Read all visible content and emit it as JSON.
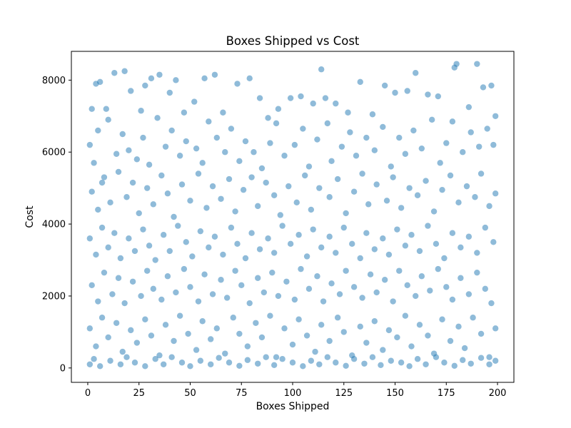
{
  "chart_data": {
    "type": "scatter",
    "title": "Boxes Shipped vs Cost",
    "xlabel": "Boxes Shipped",
    "ylabel": "Cost",
    "xlim": [
      -8,
      208
    ],
    "ylim": [
      -400,
      8800
    ],
    "xticks": [
      0,
      25,
      50,
      75,
      100,
      125,
      150,
      175,
      200
    ],
    "yticks": [
      0,
      2000,
      4000,
      6000,
      8000
    ],
    "point_color": "#1f77b4",
    "point_alpha": 0.5,
    "grid": false,
    "legend": "none",
    "points": [
      [
        2,
        7200
      ],
      [
        4,
        7900
      ],
      [
        6,
        7950
      ],
      [
        9,
        7200
      ],
      [
        13,
        8200
      ],
      [
        18,
        8250
      ],
      [
        21,
        7700
      ],
      [
        26,
        7150
      ],
      [
        28,
        7850
      ],
      [
        31,
        8050
      ],
      [
        35,
        8150
      ],
      [
        40,
        7650
      ],
      [
        43,
        8000
      ],
      [
        47,
        7100
      ],
      [
        52,
        7400
      ],
      [
        57,
        8050
      ],
      [
        62,
        8150
      ],
      [
        66,
        7100
      ],
      [
        73,
        7900
      ],
      [
        79,
        8050
      ],
      [
        84,
        7500
      ],
      [
        88,
        6950
      ],
      [
        93,
        7200
      ],
      [
        99,
        7500
      ],
      [
        104,
        7550
      ],
      [
        110,
        7350
      ],
      [
        114,
        8300
      ],
      [
        116,
        7500
      ],
      [
        121,
        7350
      ],
      [
        127,
        7100
      ],
      [
        133,
        7950
      ],
      [
        139,
        7050
      ],
      [
        145,
        7850
      ],
      [
        150,
        7650
      ],
      [
        156,
        7700
      ],
      [
        160,
        8200
      ],
      [
        166,
        7600
      ],
      [
        171,
        7550
      ],
      [
        179,
        8350
      ],
      [
        180,
        8450
      ],
      [
        186,
        7250
      ],
      [
        190,
        8450
      ],
      [
        193,
        7800
      ],
      [
        197,
        7850
      ],
      [
        199,
        7000
      ],
      [
        1,
        6200
      ],
      [
        3,
        5700
      ],
      [
        5,
        6600
      ],
      [
        7,
        5150
      ],
      [
        10,
        6900
      ],
      [
        14,
        5950
      ],
      [
        17,
        6500
      ],
      [
        20,
        6050
      ],
      [
        24,
        5800
      ],
      [
        27,
        6400
      ],
      [
        30,
        5650
      ],
      [
        34,
        6950
      ],
      [
        38,
        6150
      ],
      [
        41,
        6600
      ],
      [
        45,
        5900
      ],
      [
        48,
        6300
      ],
      [
        53,
        6100
      ],
      [
        56,
        5700
      ],
      [
        59,
        6850
      ],
      [
        63,
        6400
      ],
      [
        67,
        6000
      ],
      [
        70,
        6650
      ],
      [
        74,
        5750
      ],
      [
        77,
        6300
      ],
      [
        81,
        6000
      ],
      [
        85,
        5550
      ],
      [
        89,
        6250
      ],
      [
        92,
        6800
      ],
      [
        96,
        5900
      ],
      [
        101,
        6200
      ],
      [
        105,
        6650
      ],
      [
        108,
        5600
      ],
      [
        112,
        6350
      ],
      [
        117,
        6800
      ],
      [
        119,
        5750
      ],
      [
        124,
        6150
      ],
      [
        128,
        6550
      ],
      [
        131,
        5900
      ],
      [
        136,
        6400
      ],
      [
        140,
        6050
      ],
      [
        144,
        6700
      ],
      [
        148,
        5600
      ],
      [
        152,
        6400
      ],
      [
        155,
        5950
      ],
      [
        159,
        6600
      ],
      [
        163,
        6100
      ],
      [
        168,
        6900
      ],
      [
        172,
        5700
      ],
      [
        175,
        6250
      ],
      [
        178,
        6850
      ],
      [
        183,
        6000
      ],
      [
        187,
        6550
      ],
      [
        191,
        6150
      ],
      [
        195,
        6650
      ],
      [
        198,
        6200
      ],
      [
        2,
        4900
      ],
      [
        5,
        4400
      ],
      [
        8,
        5300
      ],
      [
        11,
        4600
      ],
      [
        15,
        5450
      ],
      [
        19,
        4750
      ],
      [
        22,
        5150
      ],
      [
        25,
        4300
      ],
      [
        29,
        5000
      ],
      [
        32,
        4550
      ],
      [
        36,
        5350
      ],
      [
        39,
        4850
      ],
      [
        42,
        4200
      ],
      [
        46,
        5100
      ],
      [
        50,
        4650
      ],
      [
        54,
        5400
      ],
      [
        58,
        4450
      ],
      [
        61,
        5050
      ],
      [
        65,
        4700
      ],
      [
        69,
        5250
      ],
      [
        72,
        4350
      ],
      [
        76,
        4950
      ],
      [
        80,
        5300
      ],
      [
        83,
        4500
      ],
      [
        87,
        5150
      ],
      [
        91,
        4800
      ],
      [
        94,
        4250
      ],
      [
        98,
        5050
      ],
      [
        102,
        4600
      ],
      [
        106,
        5350
      ],
      [
        109,
        4400
      ],
      [
        113,
        5000
      ],
      [
        118,
        4750
      ],
      [
        122,
        5250
      ],
      [
        126,
        4300
      ],
      [
        130,
        4900
      ],
      [
        134,
        5400
      ],
      [
        137,
        4550
      ],
      [
        141,
        5100
      ],
      [
        146,
        4650
      ],
      [
        149,
        5300
      ],
      [
        153,
        4450
      ],
      [
        157,
        5000
      ],
      [
        161,
        4800
      ],
      [
        165,
        5200
      ],
      [
        169,
        4350
      ],
      [
        173,
        4950
      ],
      [
        177,
        5350
      ],
      [
        181,
        4600
      ],
      [
        185,
        5050
      ],
      [
        189,
        4750
      ],
      [
        192,
        5400
      ],
      [
        196,
        4500
      ],
      [
        199,
        4850
      ],
      [
        1,
        3600
      ],
      [
        4,
        3150
      ],
      [
        7,
        3900
      ],
      [
        10,
        3350
      ],
      [
        13,
        3750
      ],
      [
        16,
        3050
      ],
      [
        20,
        3600
      ],
      [
        23,
        3250
      ],
      [
        27,
        3850
      ],
      [
        30,
        3400
      ],
      [
        33,
        3000
      ],
      [
        37,
        3700
      ],
      [
        40,
        3250
      ],
      [
        44,
        3950
      ],
      [
        48,
        3500
      ],
      [
        51,
        3100
      ],
      [
        55,
        3800
      ],
      [
        59,
        3350
      ],
      [
        62,
        3650
      ],
      [
        66,
        3150
      ],
      [
        70,
        3900
      ],
      [
        73,
        3450
      ],
      [
        77,
        3050
      ],
      [
        80,
        3750
      ],
      [
        84,
        3300
      ],
      [
        88,
        3600
      ],
      [
        91,
        3200
      ],
      [
        95,
        3950
      ],
      [
        99,
        3450
      ],
      [
        103,
        3700
      ],
      [
        107,
        3100
      ],
      [
        110,
        3850
      ],
      [
        114,
        3350
      ],
      [
        118,
        3650
      ],
      [
        121,
        3200
      ],
      [
        125,
        3900
      ],
      [
        129,
        3450
      ],
      [
        133,
        3050
      ],
      [
        136,
        3750
      ],
      [
        140,
        3300
      ],
      [
        144,
        3600
      ],
      [
        147,
        3150
      ],
      [
        151,
        3850
      ],
      [
        155,
        3400
      ],
      [
        158,
        3700
      ],
      [
        162,
        3250
      ],
      [
        166,
        3950
      ],
      [
        170,
        3450
      ],
      [
        174,
        3050
      ],
      [
        178,
        3750
      ],
      [
        182,
        3350
      ],
      [
        186,
        3650
      ],
      [
        190,
        3200
      ],
      [
        194,
        3900
      ],
      [
        198,
        3500
      ],
      [
        2,
        2300
      ],
      [
        5,
        1850
      ],
      [
        8,
        2650
      ],
      [
        12,
        2050
      ],
      [
        15,
        2500
      ],
      [
        18,
        1800
      ],
      [
        22,
        2400
      ],
      [
        26,
        2000
      ],
      [
        29,
        2700
      ],
      [
        32,
        2200
      ],
      [
        36,
        1900
      ],
      [
        39,
        2550
      ],
      [
        43,
        2100
      ],
      [
        47,
        2750
      ],
      [
        50,
        2250
      ],
      [
        54,
        1850
      ],
      [
        57,
        2600
      ],
      [
        61,
        2050
      ],
      [
        65,
        2450
      ],
      [
        68,
        1950
      ],
      [
        72,
        2700
      ],
      [
        75,
        2300
      ],
      [
        79,
        1800
      ],
      [
        83,
        2500
      ],
      [
        86,
        2100
      ],
      [
        90,
        2650
      ],
      [
        93,
        2000
      ],
      [
        97,
        2400
      ],
      [
        101,
        1900
      ],
      [
        104,
        2750
      ],
      [
        108,
        2200
      ],
      [
        112,
        2550
      ],
      [
        115,
        1850
      ],
      [
        119,
        2350
      ],
      [
        123,
        2050
      ],
      [
        126,
        2700
      ],
      [
        130,
        2250
      ],
      [
        134,
        1950
      ],
      [
        138,
        2600
      ],
      [
        141,
        2100
      ],
      [
        145,
        2450
      ],
      [
        149,
        1850
      ],
      [
        152,
        2700
      ],
      [
        156,
        2300
      ],
      [
        160,
        2000
      ],
      [
        163,
        2550
      ],
      [
        167,
        2150
      ],
      [
        171,
        2750
      ],
      [
        175,
        2250
      ],
      [
        178,
        1900
      ],
      [
        182,
        2500
      ],
      [
        186,
        2050
      ],
      [
        190,
        2650
      ],
      [
        194,
        2200
      ],
      [
        197,
        1800
      ],
      [
        1,
        1100
      ],
      [
        4,
        600
      ],
      [
        7,
        1400
      ],
      [
        10,
        850
      ],
      [
        14,
        1250
      ],
      [
        17,
        450
      ],
      [
        21,
        1050
      ],
      [
        24,
        700
      ],
      [
        28,
        1350
      ],
      [
        31,
        900
      ],
      [
        35,
        350
      ],
      [
        38,
        1200
      ],
      [
        42,
        750
      ],
      [
        45,
        1450
      ],
      [
        49,
        950
      ],
      [
        53,
        500
      ],
      [
        56,
        1300
      ],
      [
        60,
        800
      ],
      [
        63,
        1100
      ],
      [
        67,
        400
      ],
      [
        71,
        1400
      ],
      [
        74,
        950
      ],
      [
        78,
        600
      ],
      [
        82,
        1250
      ],
      [
        85,
        850
      ],
      [
        89,
        1450
      ],
      [
        92,
        300
      ],
      [
        96,
        1100
      ],
      [
        100,
        650
      ],
      [
        103,
        1350
      ],
      [
        107,
        900
      ],
      [
        111,
        450
      ],
      [
        114,
        1200
      ],
      [
        118,
        750
      ],
      [
        122,
        1400
      ],
      [
        125,
        1000
      ],
      [
        129,
        350
      ],
      [
        133,
        1150
      ],
      [
        136,
        700
      ],
      [
        140,
        1300
      ],
      [
        144,
        500
      ],
      [
        147,
        1050
      ],
      [
        151,
        850
      ],
      [
        155,
        1450
      ],
      [
        158,
        600
      ],
      [
        162,
        1200
      ],
      [
        166,
        900
      ],
      [
        169,
        400
      ],
      [
        173,
        1350
      ],
      [
        177,
        750
      ],
      [
        181,
        1150
      ],
      [
        184,
        550
      ],
      [
        188,
        1400
      ],
      [
        192,
        950
      ],
      [
        196,
        300
      ],
      [
        199,
        1100
      ],
      [
        1,
        100
      ],
      [
        3,
        250
      ],
      [
        6,
        50
      ],
      [
        11,
        200
      ],
      [
        16,
        100
      ],
      [
        19,
        300
      ],
      [
        23,
        150
      ],
      [
        28,
        50
      ],
      [
        33,
        250
      ],
      [
        37,
        100
      ],
      [
        41,
        300
      ],
      [
        46,
        150
      ],
      [
        50,
        50
      ],
      [
        55,
        200
      ],
      [
        60,
        100
      ],
      [
        64,
        280
      ],
      [
        69,
        150
      ],
      [
        74,
        60
      ],
      [
        78,
        220
      ],
      [
        83,
        120
      ],
      [
        87,
        300
      ],
      [
        91,
        80
      ],
      [
        95,
        250
      ],
      [
        100,
        150
      ],
      [
        105,
        50
      ],
      [
        109,
        200
      ],
      [
        113,
        100
      ],
      [
        117,
        300
      ],
      [
        121,
        150
      ],
      [
        126,
        60
      ],
      [
        130,
        250
      ],
      [
        135,
        120
      ],
      [
        139,
        300
      ],
      [
        143,
        80
      ],
      [
        148,
        200
      ],
      [
        153,
        150
      ],
      [
        157,
        50
      ],
      [
        161,
        250
      ],
      [
        165,
        100
      ],
      [
        170,
        300
      ],
      [
        174,
        150
      ],
      [
        179,
        60
      ],
      [
        183,
        220
      ],
      [
        187,
        120
      ],
      [
        192,
        280
      ],
      [
        196,
        100
      ],
      [
        199,
        200
      ]
    ]
  }
}
